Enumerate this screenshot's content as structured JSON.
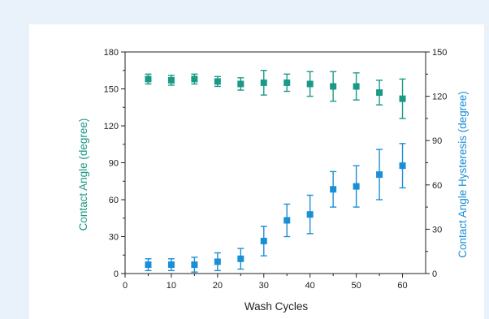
{
  "chart_data": {
    "type": "scatter",
    "xlabel": "Wash Cycles",
    "ylabel": "Contact Angle (degree)",
    "y2label": "Contact Angle Hysteresis (degree)",
    "xlim": [
      0,
      65
    ],
    "ylim": [
      0,
      180
    ],
    "y2lim": [
      0,
      150
    ],
    "xticks": [
      0,
      10,
      20,
      30,
      40,
      50,
      60
    ],
    "yticks": [
      0,
      30,
      60,
      90,
      120,
      150,
      180
    ],
    "y2ticks": [
      0,
      30,
      60,
      90,
      120,
      150
    ],
    "grid": false,
    "series": [
      {
        "axis": "left",
        "color": "#1a9a86",
        "marker": "square",
        "x": [
          5,
          10,
          15,
          20,
          25,
          30,
          35,
          40,
          45,
          50,
          55,
          60
        ],
        "y": [
          158,
          157,
          158,
          156,
          154,
          155,
          155,
          154,
          152,
          152,
          147,
          142
        ],
        "err": [
          4,
          4,
          4,
          4,
          5,
          10,
          7,
          10,
          12,
          11,
          10,
          16
        ]
      },
      {
        "axis": "right",
        "color": "#1b8fd6",
        "marker": "square",
        "x": [
          5,
          10,
          15,
          20,
          25,
          30,
          35,
          40,
          45,
          50,
          55,
          60
        ],
        "y": [
          6,
          6,
          6,
          8,
          10,
          22,
          36,
          40,
          57,
          59,
          67,
          73
        ],
        "err": [
          4,
          4,
          5,
          6,
          7,
          10,
          11,
          13,
          12,
          14,
          17,
          15
        ]
      }
    ]
  }
}
